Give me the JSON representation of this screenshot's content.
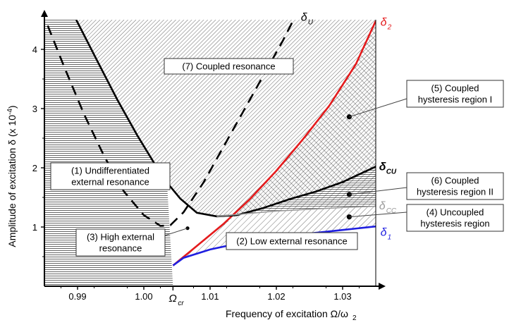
{
  "chart_data": {
    "type": "line",
    "xlabel": "Frequency of excitation Ω/ω",
    "xlabel_sub": "2",
    "ylabel": "Amplitude of excitation δ (x 10",
    "ylabel_exp": "-4",
    "ylabel_end": ")",
    "xlim": [
      0.985,
      1.035
    ],
    "ylim": [
      0,
      4.5
    ],
    "xticks": [
      {
        "v": 0.99,
        "label": "0.99"
      },
      {
        "v": 1.0,
        "label": "1.00"
      },
      {
        "v": 1.01,
        "label": "1.01"
      },
      {
        "v": 1.02,
        "label": "1.02"
      },
      {
        "v": 1.03,
        "label": "1.03"
      }
    ],
    "yticks": [
      {
        "v": 1,
        "label": "1"
      },
      {
        "v": 2,
        "label": "2"
      },
      {
        "v": 3,
        "label": "3"
      },
      {
        "v": 4,
        "label": "4"
      }
    ],
    "omega_cr": {
      "x": 1.0044,
      "label": "Ω",
      "sub": "cr"
    },
    "colors": {
      "delta2": "#e41a1c",
      "delta1": "#1f1fe0",
      "delta_cc": "#9a9a9a",
      "curves": "#000000"
    },
    "series": [
      {
        "name": "δ_2",
        "color": "#e41a1c",
        "style": "solid",
        "points": [
          [
            1.0044,
            0.35
          ],
          [
            1.008,
            0.68
          ],
          [
            1.012,
            1.05
          ],
          [
            1.016,
            1.47
          ],
          [
            1.02,
            1.95
          ],
          [
            1.024,
            2.48
          ],
          [
            1.028,
            3.05
          ],
          [
            1.032,
            3.75
          ],
          [
            1.035,
            4.48
          ]
        ]
      },
      {
        "name": "δ_1",
        "color": "#1f1fe0",
        "style": "solid",
        "points": [
          [
            1.0044,
            0.35
          ],
          [
            1.006,
            0.48
          ],
          [
            1.01,
            0.62
          ],
          [
            1.015,
            0.74
          ],
          [
            1.02,
            0.82
          ],
          [
            1.025,
            0.89
          ],
          [
            1.03,
            0.95
          ],
          [
            1.035,
            1.01
          ]
        ]
      },
      {
        "name": "δ_CU",
        "color": "#000000",
        "style": "solid",
        "points": [
          [
            0.9898,
            4.5
          ],
          [
            0.993,
            3.8
          ],
          [
            0.996,
            3.15
          ],
          [
            0.999,
            2.55
          ],
          [
            1.002,
            2.0
          ],
          [
            1.0035,
            1.75
          ],
          [
            1.0055,
            1.48
          ],
          [
            1.008,
            1.24
          ],
          [
            1.011,
            1.18
          ],
          [
            1.014,
            1.2
          ],
          [
            1.018,
            1.32
          ],
          [
            1.022,
            1.47
          ],
          [
            1.026,
            1.6
          ],
          [
            1.03,
            1.76
          ],
          [
            1.035,
            2.02
          ]
        ]
      },
      {
        "name": "δ_CC",
        "color": "#9a9a9a",
        "style": "solid",
        "points": [
          [
            1.011,
            1.18
          ],
          [
            1.015,
            1.22
          ],
          [
            1.02,
            1.27
          ],
          [
            1.025,
            1.3
          ],
          [
            1.03,
            1.33
          ],
          [
            1.035,
            1.35
          ]
        ]
      },
      {
        "name": "δ_U",
        "color": "#000000",
        "style": "dashed",
        "points": [
          [
            0.9855,
            4.4
          ],
          [
            0.988,
            3.7
          ],
          [
            0.991,
            2.9
          ],
          [
            0.994,
            2.2
          ],
          [
            0.997,
            1.6
          ],
          [
            1.0,
            1.2
          ],
          [
            1.0025,
            1.02
          ],
          [
            1.004,
            1.03
          ],
          [
            1.006,
            1.25
          ],
          [
            1.009,
            1.75
          ],
          [
            1.012,
            2.35
          ],
          [
            1.015,
            2.95
          ],
          [
            1.018,
            3.55
          ],
          [
            1.021,
            4.15
          ],
          [
            1.0225,
            4.48
          ]
        ]
      }
    ],
    "curve_labels": [
      {
        "name": "δ",
        "sub": "2",
        "color": "#e41a1c",
        "x": 1.0357,
        "y": 4.4
      },
      {
        "name": "δ",
        "sub": "U",
        "color": "#000000",
        "x": 1.0237,
        "y": 4.48
      },
      {
        "name": "δ",
        "sub": "CU",
        "color": "#000000",
        "x": 1.0355,
        "y": 1.96
      },
      {
        "name": "δ",
        "sub": "CC",
        "color": "#9a9a9a",
        "x": 1.0355,
        "y": 1.3
      },
      {
        "name": "δ",
        "sub": "1",
        "color": "#1f1fe0",
        "x": 1.0357,
        "y": 0.85
      }
    ],
    "points": [
      {
        "x": 1.0066,
        "y": 0.98
      },
      {
        "x": 1.031,
        "y": 2.86
      },
      {
        "x": 1.031,
        "y": 1.55
      },
      {
        "x": 1.031,
        "y": 1.17
      }
    ],
    "annotations": [
      {
        "id": "r7",
        "lines": [
          "(7) Coupled resonance"
        ]
      },
      {
        "id": "r1",
        "lines": [
          "(1) Undifferentiated",
          "external resonance"
        ]
      },
      {
        "id": "r3",
        "lines": [
          "(3) High external",
          "resonance"
        ]
      },
      {
        "id": "r2",
        "lines": [
          "(2) Low external resonance"
        ]
      },
      {
        "id": "r5",
        "lines": [
          "(5) Coupled",
          "hysteresis region I"
        ]
      },
      {
        "id": "r6",
        "lines": [
          "(6) Coupled",
          "hysteresis region II"
        ]
      },
      {
        "id": "r4",
        "lines": [
          "(4) Uncoupled",
          "hysteresis region"
        ]
      }
    ]
  }
}
